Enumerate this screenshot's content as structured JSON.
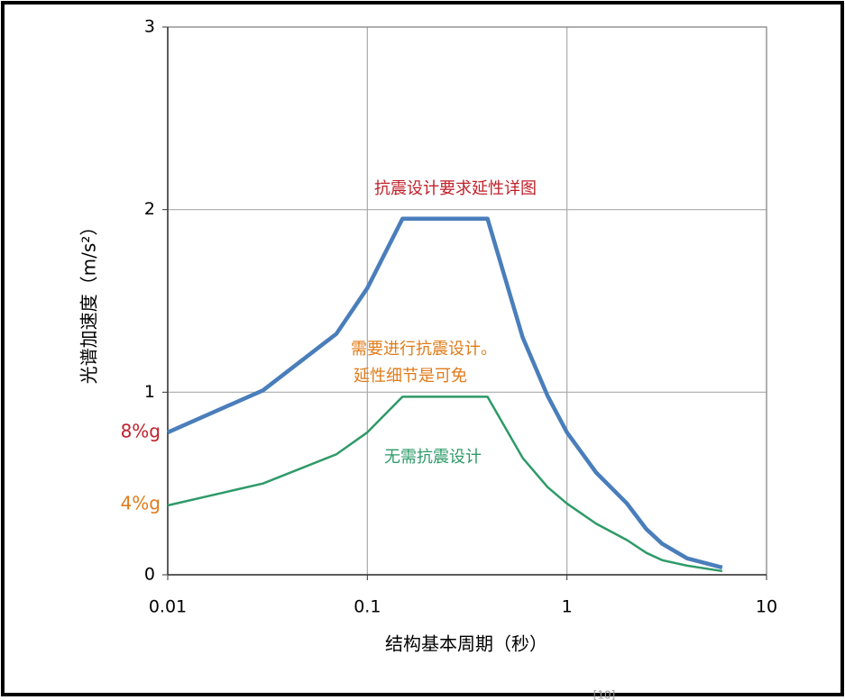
{
  "chart_data": {
    "type": "line",
    "x_label": "结构基本周期（秒）",
    "y_label": "光谱加速度（m/s²）",
    "x": [
      0.01,
      0.03,
      0.07,
      0.1,
      0.15,
      0.4,
      0.6,
      0.8,
      1.0,
      1.4,
      2.0,
      2.5,
      3.0,
      4.0,
      6.0
    ],
    "series": [
      {
        "color": "#4a7ebb",
        "values": [
          0.78,
          1.01,
          1.32,
          1.57,
          1.95,
          1.95,
          1.3,
          0.98,
          0.78,
          0.56,
          0.39,
          0.25,
          0.17,
          0.09,
          0.04
        ]
      },
      {
        "color": "#2e9a68",
        "values": [
          0.38,
          0.5,
          0.66,
          0.78,
          0.975,
          0.975,
          0.64,
          0.48,
          0.39,
          0.28,
          0.19,
          0.12,
          0.08,
          0.05,
          0.02
        ]
      }
    ],
    "xlim": [
      0.01,
      10
    ],
    "ylim": [
      0,
      3
    ],
    "xticks": [
      0.01,
      0.1,
      1,
      10
    ],
    "yticks": [
      0,
      1,
      2,
      3
    ],
    "xscale": "log",
    "grid": true,
    "annotations": [
      {
        "text": "抗震设计要求延性详图",
        "color": "#c0202a"
      },
      {
        "text": "需要进行抗震设计。",
        "color": "#e07b1a"
      },
      {
        "text": "延性细节是可免",
        "color": "#e07b1a"
      },
      {
        "text": "无需抗震设计",
        "color": "#2e9a68"
      },
      {
        "text": "8%g",
        "color": "#c0202a"
      },
      {
        "text": "4%g",
        "color": "#e07b1a"
      }
    ],
    "footnote": "[10]"
  }
}
